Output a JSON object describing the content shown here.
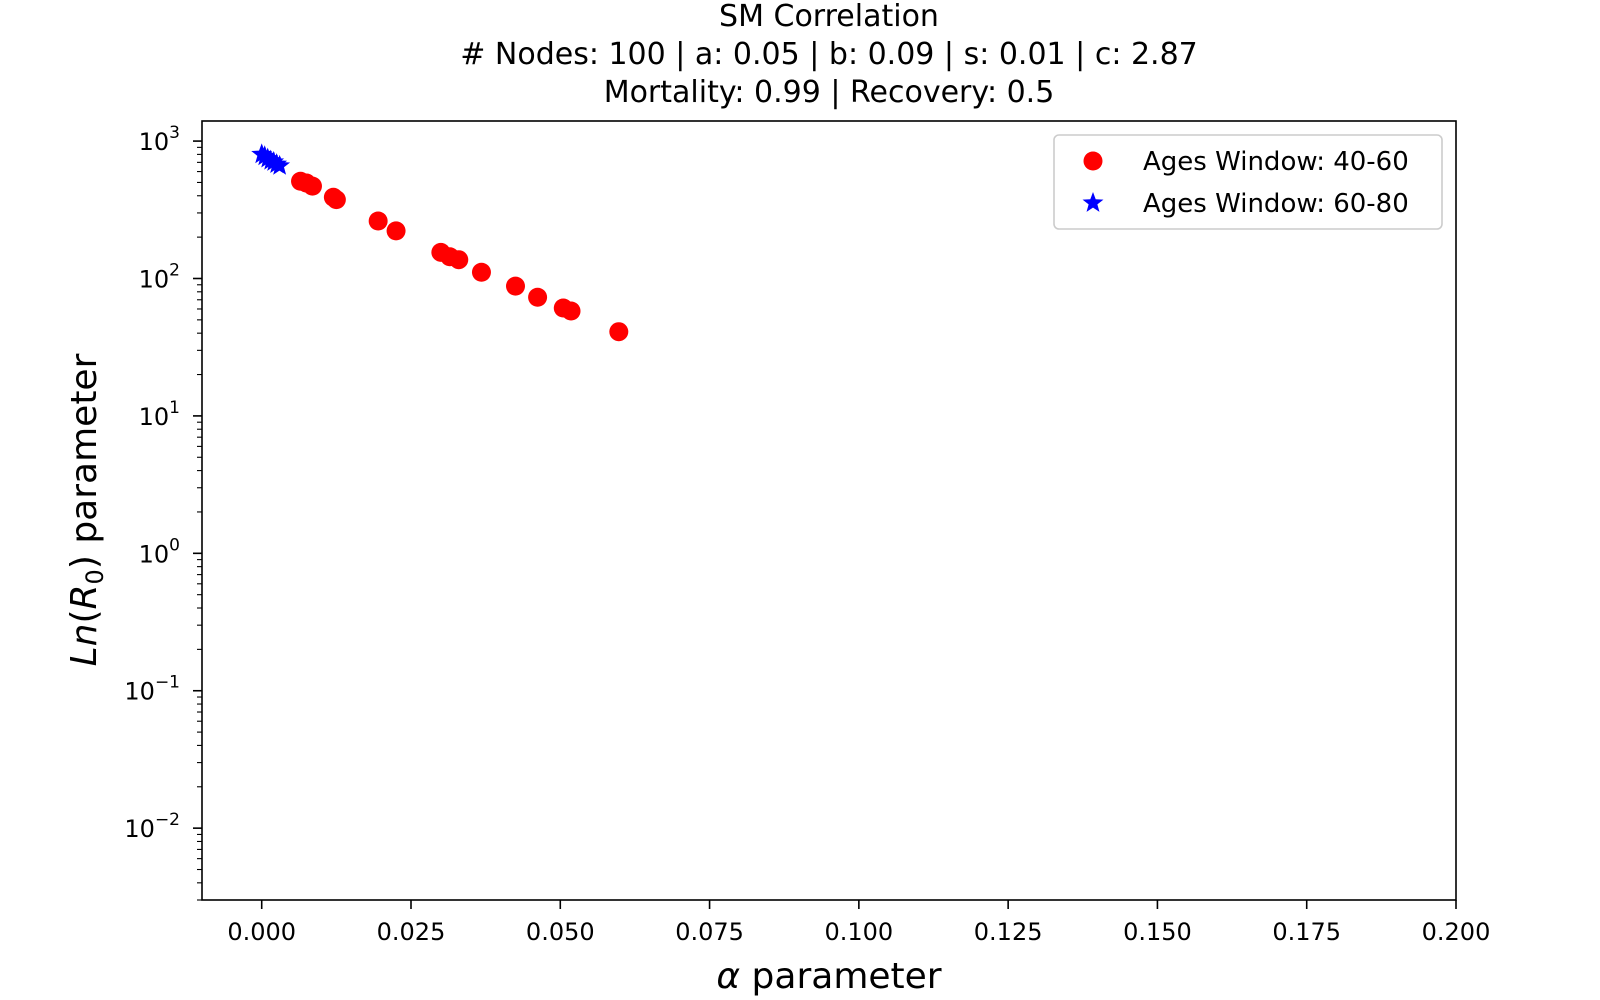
{
  "chart_data": {
    "type": "scatter",
    "title_lines": [
      "SM Correlation",
      "# Nodes: 100 | a: 0.05 | b: 0.09 | s: 0.01 | c: 2.87",
      "Mortality: 0.99 | Recovery: 0.5"
    ],
    "xlabel": {
      "symbol": "α",
      "text": " parameter"
    },
    "ylabel": {
      "prefix": "Ln(",
      "var": "R",
      "sub": "0",
      "suffix": ")",
      "text": " parameter"
    },
    "xlim": [
      -0.01,
      0.2
    ],
    "ylim": [
      0.003,
      1400
    ],
    "yscale": "log",
    "xticks": [
      0.0,
      0.025,
      0.05,
      0.075,
      0.1,
      0.125,
      0.15,
      0.175,
      0.2
    ],
    "xtick_labels": [
      "0.000",
      "0.025",
      "0.050",
      "0.075",
      "0.100",
      "0.125",
      "0.150",
      "0.175",
      "0.200"
    ],
    "yticks": [
      {
        "value": 1000,
        "base": "10",
        "exp": "3"
      },
      {
        "value": 100,
        "base": "10",
        "exp": "2"
      },
      {
        "value": 10,
        "base": "10",
        "exp": "1"
      },
      {
        "value": 1,
        "base": "10",
        "exp": "0"
      },
      {
        "value": 0.1,
        "base": "10",
        "exp": "−1"
      },
      {
        "value": 0.01,
        "base": "10",
        "exp": "−2"
      }
    ],
    "grid": false,
    "legend_position": "top-right",
    "series": [
      {
        "name": "Ages Window: 40-60",
        "marker": "circle",
        "color": "#ff0000",
        "points": [
          [
            0.0065,
            510
          ],
          [
            0.0075,
            495
          ],
          [
            0.0085,
            470
          ],
          [
            0.012,
            390
          ],
          [
            0.0125,
            375
          ],
          [
            0.0195,
            262
          ],
          [
            0.0225,
            222
          ],
          [
            0.03,
            155
          ],
          [
            0.0315,
            144
          ],
          [
            0.033,
            137
          ],
          [
            0.0368,
            111
          ],
          [
            0.0425,
            88
          ],
          [
            0.0462,
            73
          ],
          [
            0.0505,
            61
          ],
          [
            0.0518,
            58
          ],
          [
            0.0598,
            41
          ]
        ]
      },
      {
        "name": "Ages Window: 60-80",
        "marker": "star",
        "color": "#0000ff",
        "points": [
          [
            0.0,
            800
          ],
          [
            0.0005,
            775
          ],
          [
            0.001,
            745
          ],
          [
            0.0015,
            720
          ],
          [
            0.002,
            705
          ],
          [
            0.0025,
            680
          ],
          [
            0.003,
            660
          ]
        ]
      }
    ]
  }
}
